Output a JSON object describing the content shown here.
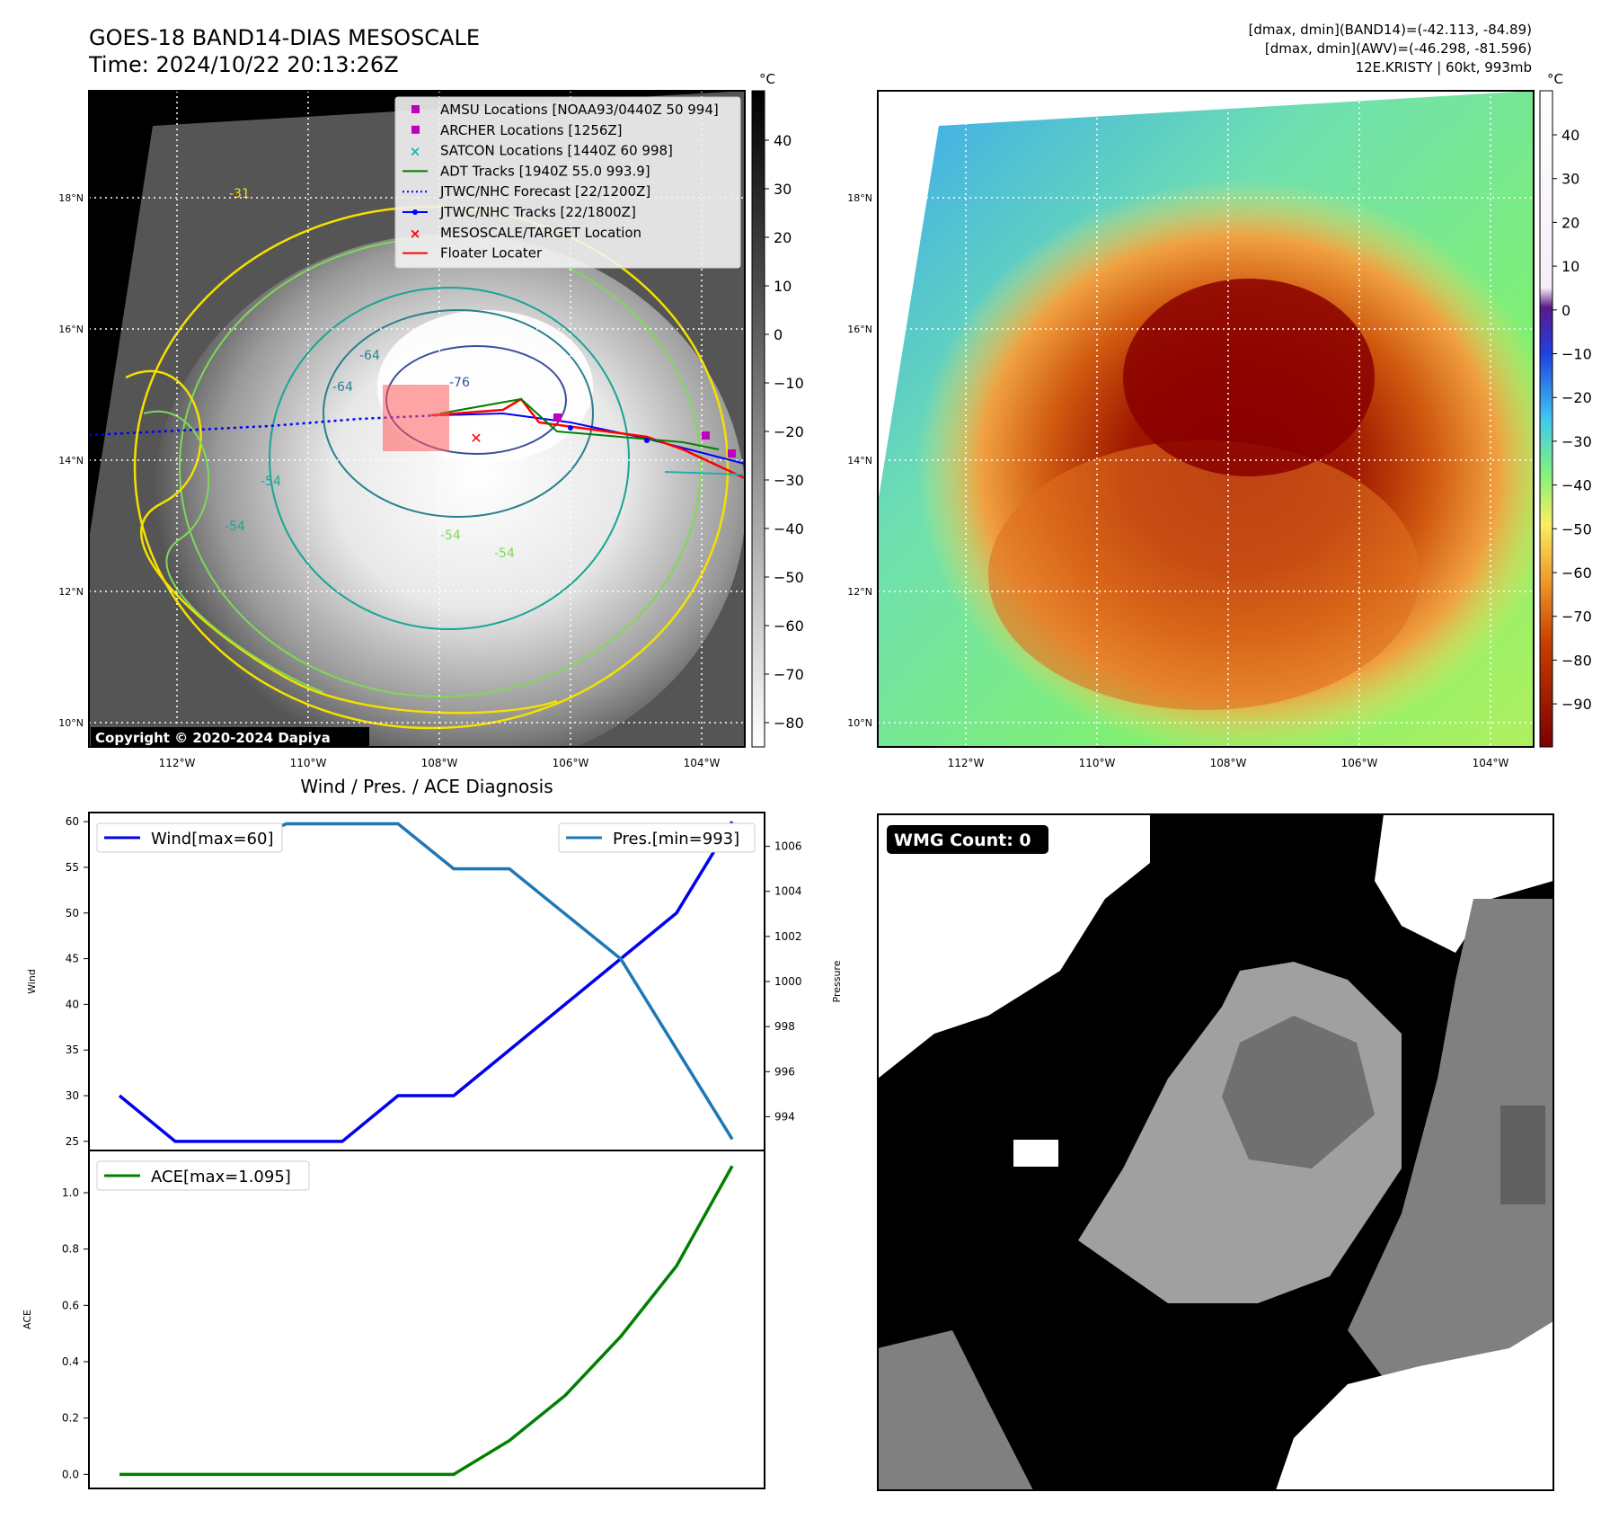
{
  "header": {
    "title_line1": "GOES-18 BAND14-DIAS MESOSCALE",
    "title_line2": "Time: 2024/10/22 20:13:26Z",
    "info_line1": "[dmax, dmin](BAND14)=(-42.113, -84.89)",
    "info_line2": "[dmax, dmin](AWV)=(-46.298, -81.596)",
    "info_line3": "12E.KRISTY | 60kt, 993mb"
  },
  "map_left": {
    "copyright": "Copyright © 2020-2024 Dapiya",
    "lat_labels": [
      "18°N",
      "16°N",
      "14°N",
      "12°N",
      "10°N"
    ],
    "lon_labels": [
      "112°W",
      "110°W",
      "108°W",
      "106°W",
      "104°W"
    ],
    "contour_labels": [
      "-64",
      "-64",
      "-76",
      "-54",
      "-54",
      "-54",
      "-54",
      "-31"
    ],
    "legend": [
      {
        "label": "AMSU Locations [NOAA93/0440Z 50 994]",
        "color": "#c000c0"
      },
      {
        "label": "ARCHER Locations [1256Z]",
        "color": "#c000c0"
      },
      {
        "label": "SATCON Locations [1440Z 60 998]",
        "color": "#20b0b0"
      },
      {
        "label": "ADT Tracks [1940Z 55.0 993.9]",
        "color": "#008000"
      },
      {
        "label": "JTWC/NHC Forecast [22/1200Z]",
        "color": "#0000ff"
      },
      {
        "label": "JTWC/NHC Tracks [22/1800Z]",
        "color": "#0000ff"
      },
      {
        "label": "MESOSCALE/TARGET Location",
        "color": "#ff0000"
      },
      {
        "label": "Floater Locater",
        "color": "#ff0000"
      }
    ],
    "colorbar": {
      "unit": "°C",
      "ticks": [
        "40",
        "30",
        "20",
        "10",
        "0",
        "−10",
        "−20",
        "−30",
        "−40",
        "−50",
        "−60",
        "−70",
        "−80"
      ]
    }
  },
  "map_right": {
    "lat_labels": [
      "18°N",
      "16°N",
      "14°N",
      "12°N",
      "10°N"
    ],
    "lon_labels": [
      "112°W",
      "110°W",
      "108°W",
      "106°W",
      "104°W"
    ],
    "colorbar": {
      "unit": "°C",
      "ticks": [
        "40",
        "30",
        "20",
        "10",
        "0",
        "−10",
        "−20",
        "−30",
        "−40",
        "−50",
        "−60",
        "−70",
        "−80",
        "−90"
      ]
    }
  },
  "wmg": {
    "label": "WMG Count: 0"
  },
  "chart_data": [
    {
      "type": "line",
      "title": "Wind / Pres. / ACE Diagnosis",
      "x": [
        0,
        1,
        2,
        3,
        4,
        5,
        6,
        7,
        8,
        9,
        10,
        11
      ],
      "series": [
        {
          "name": "Wind[max=60]",
          "axis": "left",
          "color": "#0000ee",
          "values": [
            30,
            25,
            25,
            25,
            25,
            30,
            30,
            35,
            40,
            45,
            50,
            60
          ]
        },
        {
          "name": "Pres.[min=993]",
          "axis": "right",
          "color": "#1f77b4",
          "values": [
            1006,
            1006,
            1006,
            1007,
            1007,
            1007,
            1005,
            1005,
            1003,
            1001,
            997,
            993
          ]
        }
      ],
      "ylabel": "Wind",
      "ylabel_right": "Pressure",
      "ylim": [
        24,
        61
      ],
      "ylim_right": [
        992.5,
        1007.5
      ],
      "yticks": [
        25,
        30,
        35,
        40,
        45,
        50,
        55,
        60
      ],
      "yticks_right": [
        994,
        996,
        998,
        1000,
        1002,
        1004,
        1006
      ]
    },
    {
      "type": "line",
      "title": "",
      "x": [
        0,
        1,
        2,
        3,
        4,
        5,
        6,
        7,
        8,
        9,
        10,
        11
      ],
      "series": [
        {
          "name": "ACE[max=1.095]",
          "color": "#008000",
          "values": [
            0.0,
            0.0,
            0.0,
            0.0,
            0.0,
            0.0,
            0.0,
            0.12,
            0.28,
            0.49,
            0.74,
            1.095
          ]
        }
      ],
      "ylabel": "ACE",
      "ylim": [
        -0.05,
        1.15
      ],
      "yticks": [
        "0.0",
        "0.2",
        "0.4",
        "0.6",
        "0.8",
        "1.0"
      ]
    }
  ]
}
